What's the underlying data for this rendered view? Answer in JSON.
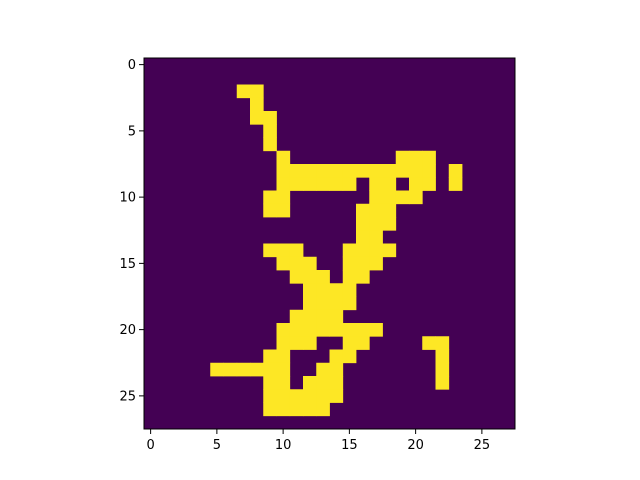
{
  "chart_data": {
    "type": "heatmap",
    "title": "",
    "xlabel": "",
    "ylabel": "",
    "rows": 28,
    "cols": 28,
    "colors": {
      "low": "#440154",
      "high": "#fde725"
    },
    "x_ticks": [
      "0",
      "5",
      "10",
      "15",
      "20",
      "25"
    ],
    "y_ticks": [
      "0",
      "5",
      "10",
      "15",
      "20",
      "25"
    ],
    "x_tick_values": [
      0,
      5,
      10,
      15,
      20,
      25
    ],
    "y_tick_values": [
      0,
      5,
      10,
      15,
      20,
      25
    ],
    "grid": false,
    "legend": "none",
    "pixel_rows": [
      "............................",
      "............................",
      ".......XX...................",
      "........X...................",
      "........XX..................",
      ".........X..................",
      ".........X..................",
      "..........X........XXX......",
      "..........XXXXXXXXXXXX.X....",
      "..........XXXXXX.XX.XX.X....",
      ".........XX......XXXX.......",
      ".........XX.....XXX.........",
      "................XXX.........",
      "................XX..........",
      ".........XXX...XXXX.........",
      "..........XXX..XXX..........",
      "...........XXX.XX...........",
      "............XXXX............",
      "............XXXX............",
      "...........XXXX.............",
      "..........XXXXXXXX..........",
      "..........XXX..XX....XX.....",
      ".........XX...XX......X.....",
      ".....XXXXXX..XX.......X.....",
      ".........XX.XXX.......X.....",
      ".........XXXXXX.............",
      ".........XXXXX..............",
      "............................"
    ]
  }
}
